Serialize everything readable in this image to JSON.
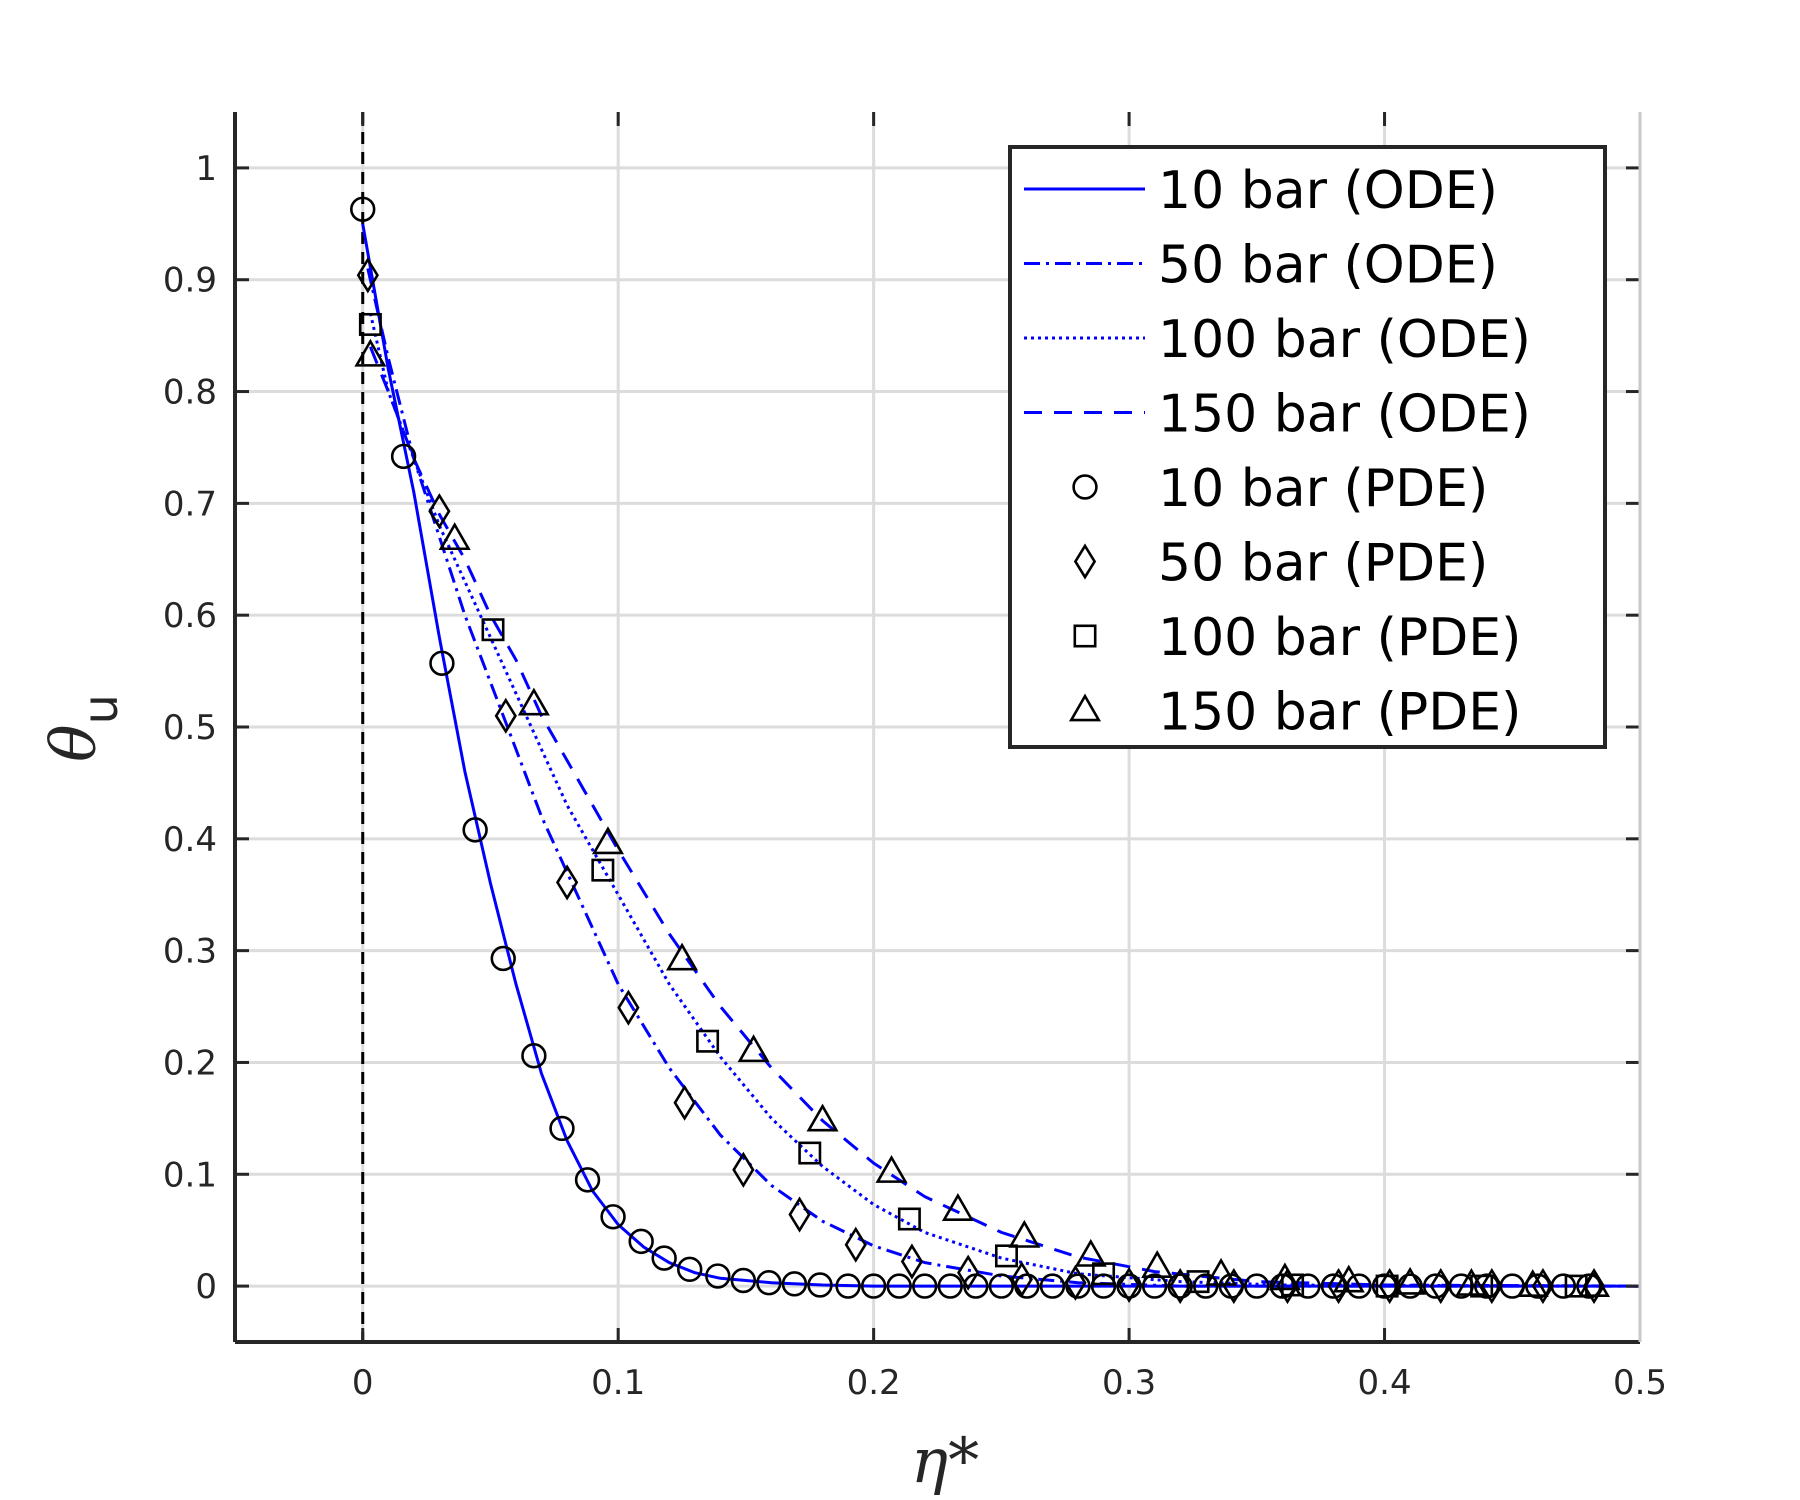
{
  "chart_data": {
    "type": "line",
    "xlabel": "η*",
    "ylabel": "θ",
    "ylabel_sub": "u",
    "xlim": [
      -0.05,
      0.5
    ],
    "ylim": [
      -0.05,
      1.05
    ],
    "xticks": [
      0,
      0.1,
      0.2,
      0.3,
      0.4,
      0.5
    ],
    "xtick_labels": [
      "0",
      "0.1",
      "0.2",
      "0.3",
      "0.4",
      "0.5"
    ],
    "yticks": [
      0,
      0.1,
      0.2,
      0.3,
      0.4,
      0.5,
      0.6,
      0.7,
      0.8,
      0.9,
      1
    ],
    "ytick_labels": [
      "0",
      "0.1",
      "0.2",
      "0.3",
      "0.4",
      "0.5",
      "0.6",
      "0.7",
      "0.8",
      "0.9",
      "1"
    ],
    "grid": true,
    "legend_position": "top-right",
    "reference_line": {
      "x": 0,
      "style": "dashed",
      "color": "#000000"
    },
    "series": [
      {
        "name": "10 bar (ODE)",
        "kind": "line",
        "style": "solid",
        "color": "#0000ff",
        "points": [
          [
            0.0,
            0.95
          ],
          [
            0.01,
            0.82
          ],
          [
            0.02,
            0.71
          ],
          [
            0.03,
            0.58
          ],
          [
            0.04,
            0.46
          ],
          [
            0.05,
            0.36
          ],
          [
            0.06,
            0.27
          ],
          [
            0.07,
            0.19
          ],
          [
            0.08,
            0.13
          ],
          [
            0.09,
            0.085
          ],
          [
            0.1,
            0.055
          ],
          [
            0.11,
            0.035
          ],
          [
            0.12,
            0.021
          ],
          [
            0.13,
            0.012
          ],
          [
            0.14,
            0.007
          ],
          [
            0.16,
            0.003
          ],
          [
            0.18,
            0.001
          ],
          [
            0.2,
            0.0
          ],
          [
            0.3,
            0.0
          ],
          [
            0.5,
            0.0
          ]
        ]
      },
      {
        "name": "50 bar (ODE)",
        "kind": "line",
        "style": "dashdot",
        "color": "#0000ff",
        "points": [
          [
            0.002,
            0.91
          ],
          [
            0.01,
            0.83
          ],
          [
            0.02,
            0.74
          ],
          [
            0.03,
            0.67
          ],
          [
            0.04,
            0.6
          ],
          [
            0.05,
            0.54
          ],
          [
            0.06,
            0.48
          ],
          [
            0.07,
            0.42
          ],
          [
            0.08,
            0.37
          ],
          [
            0.1,
            0.27
          ],
          [
            0.12,
            0.195
          ],
          [
            0.14,
            0.135
          ],
          [
            0.16,
            0.09
          ],
          [
            0.18,
            0.058
          ],
          [
            0.2,
            0.036
          ],
          [
            0.22,
            0.021
          ],
          [
            0.25,
            0.009
          ],
          [
            0.28,
            0.003
          ],
          [
            0.32,
            0.0
          ],
          [
            0.5,
            0.0
          ]
        ]
      },
      {
        "name": "100 bar (ODE)",
        "kind": "line",
        "style": "dotted",
        "color": "#0000ff",
        "points": [
          [
            0.003,
            0.87
          ],
          [
            0.01,
            0.8
          ],
          [
            0.02,
            0.74
          ],
          [
            0.03,
            0.68
          ],
          [
            0.04,
            0.63
          ],
          [
            0.05,
            0.58
          ],
          [
            0.06,
            0.53
          ],
          [
            0.07,
            0.48
          ],
          [
            0.08,
            0.43
          ],
          [
            0.1,
            0.35
          ],
          [
            0.12,
            0.27
          ],
          [
            0.14,
            0.205
          ],
          [
            0.16,
            0.15
          ],
          [
            0.18,
            0.107
          ],
          [
            0.2,
            0.073
          ],
          [
            0.22,
            0.048
          ],
          [
            0.25,
            0.025
          ],
          [
            0.28,
            0.011
          ],
          [
            0.32,
            0.004
          ],
          [
            0.36,
            0.001
          ],
          [
            0.5,
            0.0
          ]
        ]
      },
      {
        "name": "150 bar (ODE)",
        "kind": "line",
        "style": "dashed",
        "color": "#0000ff",
        "points": [
          [
            0.003,
            0.84
          ],
          [
            0.01,
            0.8
          ],
          [
            0.02,
            0.74
          ],
          [
            0.03,
            0.69
          ],
          [
            0.04,
            0.65
          ],
          [
            0.05,
            0.6
          ],
          [
            0.06,
            0.56
          ],
          [
            0.07,
            0.51
          ],
          [
            0.08,
            0.47
          ],
          [
            0.1,
            0.39
          ],
          [
            0.12,
            0.315
          ],
          [
            0.14,
            0.25
          ],
          [
            0.16,
            0.195
          ],
          [
            0.18,
            0.148
          ],
          [
            0.2,
            0.11
          ],
          [
            0.22,
            0.08
          ],
          [
            0.25,
            0.048
          ],
          [
            0.28,
            0.026
          ],
          [
            0.31,
            0.013
          ],
          [
            0.35,
            0.004
          ],
          [
            0.4,
            0.001
          ],
          [
            0.5,
            0.0
          ]
        ]
      },
      {
        "name": "10 bar (PDE)",
        "kind": "markers",
        "marker": "circle",
        "color": "#000000",
        "points": [
          [
            0.0,
            0.963
          ],
          [
            0.016,
            0.742
          ],
          [
            0.031,
            0.557
          ],
          [
            0.044,
            0.408
          ],
          [
            0.055,
            0.293
          ],
          [
            0.067,
            0.206
          ],
          [
            0.078,
            0.141
          ],
          [
            0.088,
            0.095
          ],
          [
            0.098,
            0.062
          ],
          [
            0.109,
            0.04
          ],
          [
            0.118,
            0.025
          ],
          [
            0.128,
            0.015
          ],
          [
            0.139,
            0.009
          ],
          [
            0.149,
            0.005
          ],
          [
            0.159,
            0.003
          ],
          [
            0.169,
            0.002
          ],
          [
            0.179,
            0.001
          ],
          [
            0.19,
            0.0
          ],
          [
            0.2,
            0.0
          ],
          [
            0.21,
            0.0
          ],
          [
            0.22,
            0.0
          ],
          [
            0.23,
            0.0
          ],
          [
            0.24,
            0.0
          ],
          [
            0.25,
            0.0
          ],
          [
            0.26,
            0.0
          ],
          [
            0.27,
            0.0
          ],
          [
            0.28,
            0.0
          ],
          [
            0.29,
            0.0
          ],
          [
            0.3,
            0.0
          ],
          [
            0.31,
            0.0
          ],
          [
            0.32,
            0.0
          ],
          [
            0.33,
            0.0
          ],
          [
            0.34,
            0.0
          ],
          [
            0.35,
            0.0
          ],
          [
            0.36,
            0.0
          ],
          [
            0.37,
            0.0
          ],
          [
            0.38,
            0.0
          ],
          [
            0.39,
            0.0
          ],
          [
            0.4,
            0.0
          ],
          [
            0.41,
            0.0
          ],
          [
            0.42,
            0.0
          ],
          [
            0.43,
            0.0
          ],
          [
            0.44,
            0.0
          ],
          [
            0.45,
            0.0
          ],
          [
            0.46,
            0.0
          ],
          [
            0.47,
            0.0
          ],
          [
            0.48,
            0.0
          ]
        ]
      },
      {
        "name": "50 bar (PDE)",
        "kind": "markers",
        "marker": "diamond",
        "color": "#000000",
        "points": [
          [
            0.002,
            0.904
          ],
          [
            0.03,
            0.693
          ],
          [
            0.056,
            0.51
          ],
          [
            0.08,
            0.361
          ],
          [
            0.104,
            0.249
          ],
          [
            0.126,
            0.164
          ],
          [
            0.149,
            0.104
          ],
          [
            0.171,
            0.064
          ],
          [
            0.193,
            0.037
          ],
          [
            0.215,
            0.022
          ],
          [
            0.237,
            0.012
          ],
          [
            0.258,
            0.006
          ],
          [
            0.279,
            0.003
          ],
          [
            0.3,
            0.001
          ],
          [
            0.32,
            0.0
          ],
          [
            0.341,
            0.0
          ],
          [
            0.362,
            0.0
          ],
          [
            0.382,
            0.0
          ],
          [
            0.402,
            0.0
          ],
          [
            0.422,
            0.0
          ],
          [
            0.442,
            0.0
          ],
          [
            0.462,
            0.0
          ],
          [
            0.482,
            0.0
          ]
        ]
      },
      {
        "name": "100 bar (PDE)",
        "kind": "markers",
        "marker": "square",
        "color": "#000000",
        "points": [
          [
            0.003,
            0.86
          ],
          [
            0.051,
            0.587
          ],
          [
            0.094,
            0.372
          ],
          [
            0.135,
            0.219
          ],
          [
            0.175,
            0.119
          ],
          [
            0.214,
            0.06
          ],
          [
            0.252,
            0.027
          ],
          [
            0.29,
            0.011
          ],
          [
            0.327,
            0.004
          ],
          [
            0.364,
            0.001
          ],
          [
            0.401,
            0.0
          ],
          [
            0.438,
            0.0
          ],
          [
            0.475,
            0.0
          ]
        ]
      },
      {
        "name": "150 bar (PDE)",
        "kind": "markers",
        "marker": "triangle",
        "color": "#000000",
        "points": [
          [
            0.003,
            0.832
          ],
          [
            0.036,
            0.668
          ],
          [
            0.067,
            0.52
          ],
          [
            0.096,
            0.396
          ],
          [
            0.125,
            0.292
          ],
          [
            0.153,
            0.21
          ],
          [
            0.18,
            0.148
          ],
          [
            0.207,
            0.102
          ],
          [
            0.233,
            0.068
          ],
          [
            0.259,
            0.044
          ],
          [
            0.285,
            0.027
          ],
          [
            0.311,
            0.017
          ],
          [
            0.336,
            0.01
          ],
          [
            0.361,
            0.006
          ],
          [
            0.386,
            0.004
          ],
          [
            0.41,
            0.002
          ],
          [
            0.434,
            0.001
          ],
          [
            0.458,
            0.0
          ],
          [
            0.482,
            0.0
          ]
        ]
      }
    ]
  }
}
